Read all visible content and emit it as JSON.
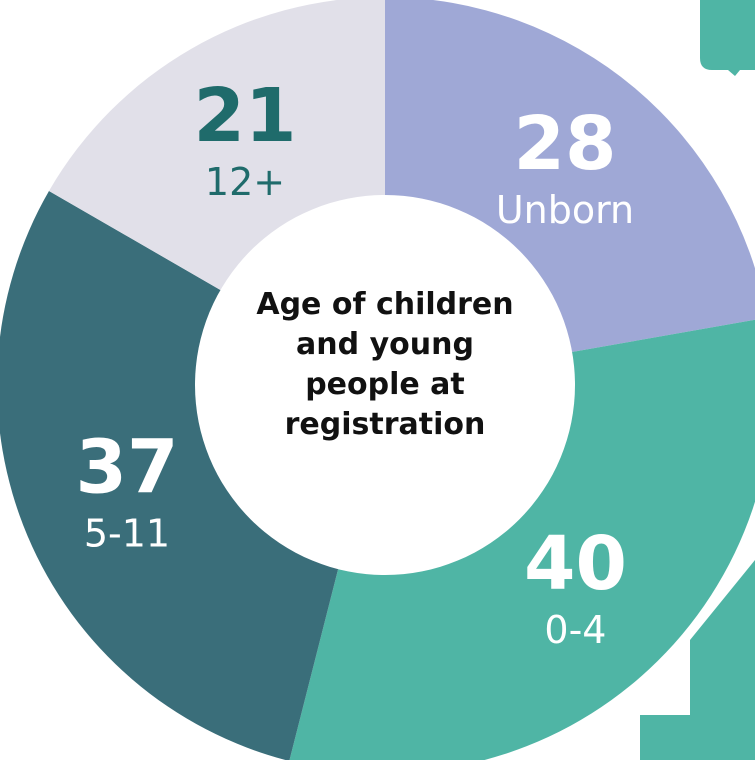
{
  "chart_data": {
    "type": "donut",
    "title": "Age of children and young people at registration",
    "categories": [
      "Unborn",
      "0-4",
      "5-11",
      "12+"
    ],
    "values": [
      28,
      40,
      37,
      21
    ],
    "colors": [
      "#9fa8d6",
      "#4fb5a5",
      "#3a6e7a",
      "#e1e0e9"
    ],
    "label_colors": [
      "#ffffff",
      "#ffffff",
      "#ffffff",
      "#1f6b6b"
    ]
  }
}
